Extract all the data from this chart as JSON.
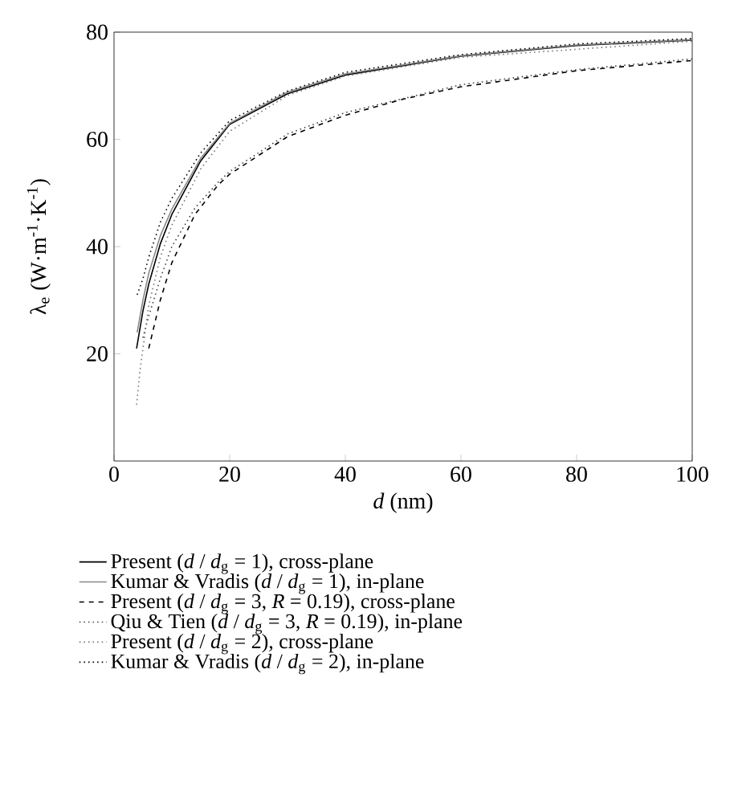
{
  "chart_data": {
    "type": "line",
    "xlabel": "*d* (nm)",
    "ylabel": "λ$_{e}$ (W·m$^{-1}$·K$^{-1}$)",
    "xlim": [
      0,
      100
    ],
    "ylim": [
      0,
      80
    ],
    "xticks": [
      0,
      20,
      40,
      60,
      80,
      100
    ],
    "yticks": [
      20,
      40,
      60,
      80
    ],
    "legend": "bottom",
    "marker": "none",
    "grid": false,
    "series": [
      {
        "name": "Present (*d* / *d*$_{g}$ = 1), cross-plane",
        "color": "#000000",
        "line_style": "solid",
        "x": [
          3.9,
          5,
          6,
          8,
          10,
          15,
          20,
          30,
          40,
          60,
          80,
          100
        ],
        "values": [
          21,
          28,
          33,
          40.5,
          46,
          56,
          62.8,
          68.5,
          72,
          75.5,
          77.5,
          78.5
        ]
      },
      {
        "name": "Kumar & Vradis (*d* / *d*$_{g}$ = 1), in-plane",
        "color": "#888888",
        "line_style": "solid",
        "x": [
          4,
          5,
          6,
          8,
          10,
          15,
          20,
          30,
          40,
          60,
          80,
          100
        ],
        "values": [
          24,
          30,
          35,
          42,
          47,
          56.5,
          63,
          68.8,
          72.2,
          75.6,
          77.6,
          78.6
        ]
      },
      {
        "name": "Present (*d* / *d*$_{g}$ = 3, *R* = 0.19), cross-plane",
        "color": "#000000",
        "line_style": "dashed",
        "x": [
          6,
          8,
          10,
          14,
          18,
          20,
          30,
          40,
          50,
          60,
          80,
          100
        ],
        "values": [
          21,
          30,
          37,
          46,
          51.5,
          53.5,
          60.5,
          64.5,
          67.5,
          69.8,
          72.8,
          74.7
        ]
      },
      {
        "name": "Qiu & Tien (*d* / *d*$_{g}$ = 3, *R* = 0.19), in-plane",
        "color": "#444444",
        "line_style": "dotted",
        "x": [
          5,
          6,
          8,
          10,
          14,
          18,
          20,
          30,
          40,
          60,
          80,
          100
        ],
        "values": [
          23,
          27,
          34,
          40,
          47.2,
          52,
          54,
          61,
          65,
          70.2,
          73,
          75
        ]
      },
      {
        "name": "Present (*d* / *d*$_{g}$ = 2), cross-plane",
        "color": "#777777",
        "line_style": "dotted",
        "x": [
          3.9,
          4.5,
          6,
          8,
          10,
          15,
          20,
          30,
          40,
          60,
          100
        ],
        "values": [
          10.5,
          17,
          29,
          38,
          44,
          54.5,
          61.5,
          68.2,
          71.8,
          75.3,
          78.3
        ]
      },
      {
        "name": "Kumar & Vradis (*d* / *d*$_{g}$ = 2), in-plane",
        "color": "#000000",
        "line_style": "dotted",
        "x": [
          4,
          5,
          6,
          8,
          10,
          15,
          20,
          30,
          40,
          60,
          80,
          100
        ],
        "values": [
          31,
          34,
          38,
          44.5,
          49,
          57.5,
          63.5,
          69,
          72.5,
          75.8,
          77.8,
          78.8
        ]
      }
    ]
  }
}
